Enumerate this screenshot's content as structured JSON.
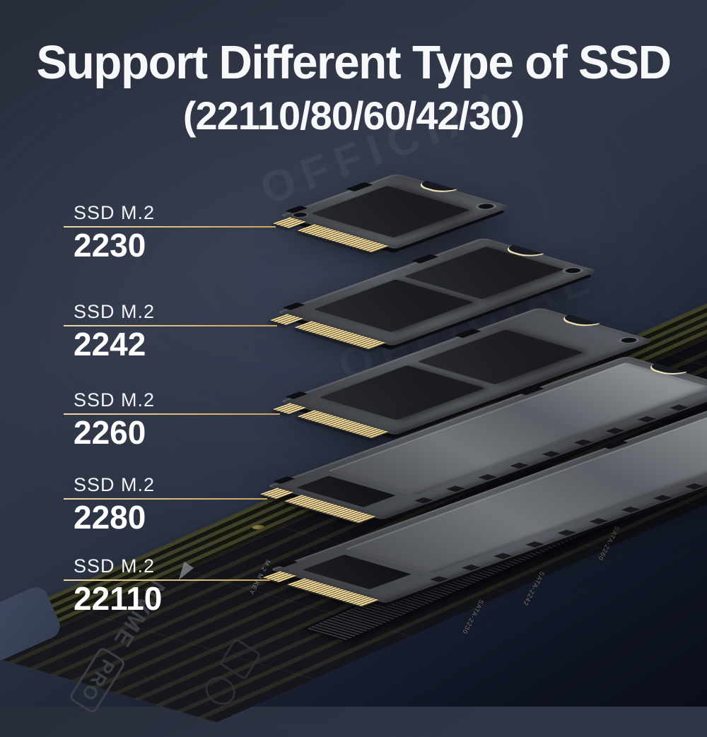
{
  "title": "Support Different Type of SSD",
  "subtitle": "(22110/80/60/42/30)",
  "watermark": "OFFICIAL",
  "labels": [
    {
      "prefix": "SSD M.2",
      "size": "2230"
    },
    {
      "prefix": "SSD M.2",
      "size": "2242"
    },
    {
      "prefix": "SSD M.2",
      "size": "2260"
    },
    {
      "prefix": "SSD M.2",
      "size": "2280"
    },
    {
      "prefix": "SSD M.2",
      "size": "22110"
    }
  ],
  "adapter": {
    "logo_primary": "NVME",
    "logo_secondary": "PRO",
    "silkscreen": [
      "M.2 M KEY",
      "SATA-2230",
      "SATA-2242",
      "SATA-2260"
    ]
  },
  "colors": {
    "background_top": "#2a303f",
    "background_light": "#3a4156",
    "background_bottom": "#0c101d",
    "callout_line": "#d9bc7e",
    "text": "#ffffff",
    "connector_gold": "#ecd9a0",
    "pcb_gray": "#4b4e54",
    "card_black": "#131419"
  }
}
